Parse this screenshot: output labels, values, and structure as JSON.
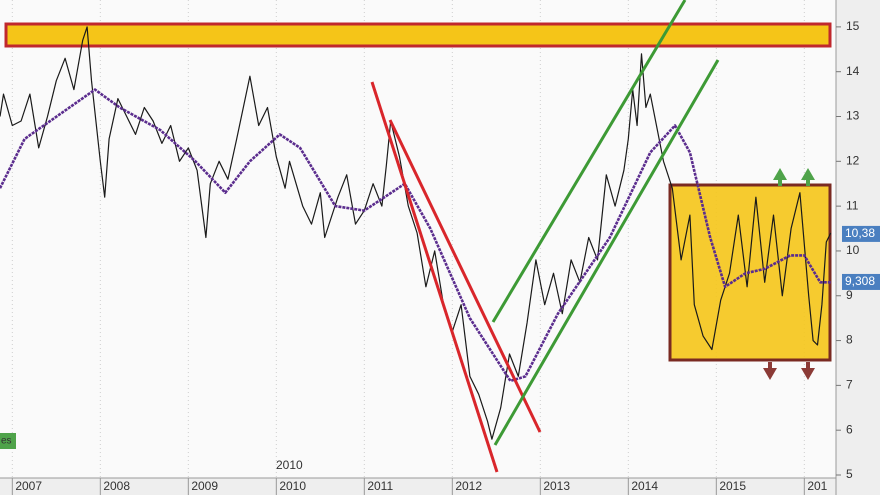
{
  "chart_data": {
    "type": "line",
    "xlim": [
      2006.86,
      2016.36
    ],
    "xticks": [
      2007,
      2008,
      2009,
      2010,
      2011,
      2012,
      2013,
      2014,
      2015,
      {
        "value": 2016,
        "label": "201"
      }
    ],
    "ylim": [
      5,
      15.6
    ],
    "yticks": [
      5,
      6,
      7,
      8,
      9,
      10,
      11,
      12,
      13,
      14,
      15
    ],
    "grid": true,
    "series": [
      {
        "color": "#1a1a1a",
        "x": [
          2006.86,
          2006.9,
          2007.0,
          2007.1,
          2007.2,
          2007.3,
          2007.4,
          2007.5,
          2007.6,
          2007.7,
          2007.8,
          2007.85,
          2007.9,
          2008.0,
          2008.05,
          2008.1,
          2008.2,
          2008.3,
          2008.4,
          2008.5,
          2008.6,
          2008.7,
          2008.8,
          2008.9,
          2009.0,
          2009.1,
          2009.2,
          2009.25,
          2009.35,
          2009.45,
          2009.55,
          2009.7,
          2009.8,
          2009.9,
          2010.0,
          2010.1,
          2010.15,
          2010.3,
          2010.4,
          2010.5,
          2010.55,
          2010.7,
          2010.8,
          2010.9,
          2011.0,
          2011.1,
          2011.2,
          2011.25,
          2011.3,
          2011.4,
          2011.5,
          2011.6,
          2011.7,
          2011.8,
          2011.9,
          2012.0,
          2012.1,
          2012.2,
          2012.3,
          2012.4,
          2012.45,
          2012.55,
          2012.65,
          2012.75,
          2012.85,
          2012.95,
          2013.05,
          2013.15,
          2013.25,
          2013.35,
          2013.45,
          2013.55,
          2013.65,
          2013.75,
          2013.85,
          2013.95,
          2014.0,
          2014.05,
          2014.1,
          2014.15,
          2014.2,
          2014.25,
          2014.3,
          2014.4,
          2014.5,
          2014.6,
          2014.7,
          2014.75,
          2014.85,
          2014.95,
          2015.05,
          2015.15,
          2015.25,
          2015.35,
          2015.45,
          2015.55,
          2015.65,
          2015.75,
          2015.85,
          2015.95,
          2016.05,
          2016.1,
          2016.15,
          2016.2,
          2016.25,
          2016.3
        ],
        "values": [
          13.0,
          13.5,
          12.8,
          12.9,
          13.5,
          12.3,
          13.0,
          13.8,
          14.3,
          13.6,
          14.7,
          15.0,
          13.8,
          12.0,
          11.2,
          12.5,
          13.4,
          13.0,
          12.6,
          13.2,
          12.9,
          12.4,
          12.8,
          12.0,
          12.3,
          11.8,
          10.3,
          11.5,
          12.0,
          11.6,
          12.5,
          13.9,
          12.8,
          13.2,
          12.1,
          11.4,
          12.0,
          11.0,
          10.6,
          11.3,
          10.3,
          11.2,
          11.7,
          10.6,
          10.9,
          11.5,
          11.0,
          11.9,
          12.9,
          12.1,
          11.0,
          10.4,
          9.2,
          10.0,
          8.8,
          8.2,
          8.8,
          7.2,
          6.8,
          6.2,
          5.8,
          6.5,
          7.7,
          7.2,
          8.4,
          9.8,
          8.8,
          9.5,
          8.6,
          9.8,
          9.3,
          10.3,
          9.8,
          11.7,
          11.0,
          11.8,
          12.5,
          13.6,
          12.8,
          14.4,
          13.2,
          13.5,
          13.0,
          12.0,
          11.4,
          9.8,
          10.8,
          8.8,
          8.1,
          7.8,
          8.9,
          9.5,
          10.8,
          9.2,
          11.2,
          9.3,
          10.8,
          9.0,
          10.5,
          11.3,
          9.0,
          8.0,
          7.9,
          8.8,
          10.2,
          10.4
        ]
      },
      {
        "color": "#5b2d8e",
        "x": [
          2006.86,
          2007.14,
          2007.43,
          2007.94,
          2008.22,
          2008.68,
          2009.08,
          2009.42,
          2009.7,
          2010.04,
          2010.27,
          2010.67,
          2011.0,
          2011.46,
          2011.75,
          2012.2,
          2012.66,
          2012.83,
          2013.2,
          2013.79,
          2014.25,
          2014.53,
          2014.7,
          2014.93,
          2015.1,
          2015.33,
          2015.55,
          2015.84,
          2016.0,
          2016.18,
          2016.3
        ],
        "values": [
          11.4,
          12.5,
          12.9,
          13.6,
          13.2,
          12.7,
          12.0,
          11.3,
          12.0,
          12.6,
          12.3,
          11.0,
          10.9,
          11.5,
          10.5,
          8.5,
          7.1,
          7.2,
          8.6,
          10.3,
          12.2,
          12.8,
          12.2,
          10.3,
          9.2,
          9.5,
          9.6,
          9.9,
          9.9,
          9.3,
          9.3
        ]
      }
    ],
    "last_labels": [
      {
        "value": 10.38,
        "label": "10,38"
      },
      {
        "value": 9.308,
        "label": "9,308"
      }
    ],
    "annotations": [
      "2010",
      "es"
    ]
  }
}
